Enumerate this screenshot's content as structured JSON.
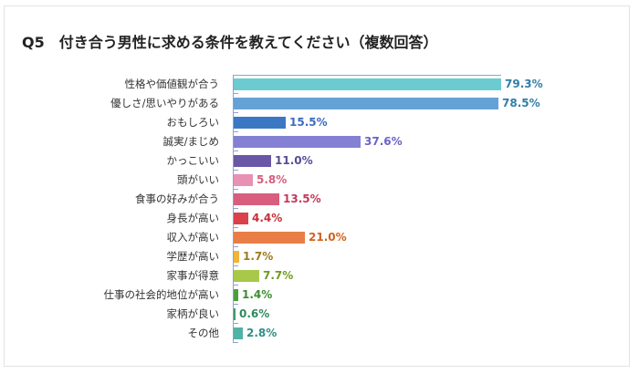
{
  "title": "Q5　付き合う男性に求める条件を教えてください（複数回答）",
  "chart_data": {
    "type": "bar",
    "orientation": "horizontal",
    "title": "Q5　付き合う男性に求める条件を教えてください（複数回答）",
    "xlabel": "",
    "ylabel": "",
    "xlim": [
      0,
      80
    ],
    "grid": false,
    "legend": null,
    "unit": "%",
    "categories": [
      "性格や価値観が合う",
      "優しさ/思いやりがある",
      "おもしろい",
      "誠実/まじめ",
      "かっこいい",
      "頭がいい",
      "食事の好みが合う",
      "身長が高い",
      "収入が高い",
      "学歴が高い",
      "家事が得意",
      "仕事の社会的地位が高い",
      "家柄が良い",
      "その他"
    ],
    "values": [
      79.3,
      78.5,
      15.5,
      37.6,
      11.0,
      5.8,
      13.5,
      4.4,
      21.0,
      1.7,
      7.7,
      1.4,
      0.6,
      2.8
    ],
    "labels": [
      "79.3%",
      "78.5%",
      "15.5%",
      "37.6%",
      "11.0%",
      "5.8%",
      "13.5%",
      "4.4%",
      "21.0%",
      "1.7%",
      "7.7%",
      "1.4%",
      "0.6%",
      "2.8%"
    ],
    "bar_colors": [
      "#6ccbd0",
      "#64a2d6",
      "#3b78c4",
      "#8480d4",
      "#6a57a6",
      "#e891b4",
      "#d95d7c",
      "#d9414b",
      "#e87e45",
      "#f0b43a",
      "#a8c84a",
      "#4aa03e",
      "#3c9a6e",
      "#4fb3a6"
    ],
    "label_colors": [
      "#2f7ea8",
      "#2f7ea8",
      "#3b6bbf",
      "#6a63c6",
      "#5a4a96",
      "#d5607d",
      "#c4395a",
      "#c4303a",
      "#d0621f",
      "#a07a1c",
      "#6f9a1f",
      "#3a8e2e",
      "#2e8a60",
      "#2e8f84"
    ]
  }
}
